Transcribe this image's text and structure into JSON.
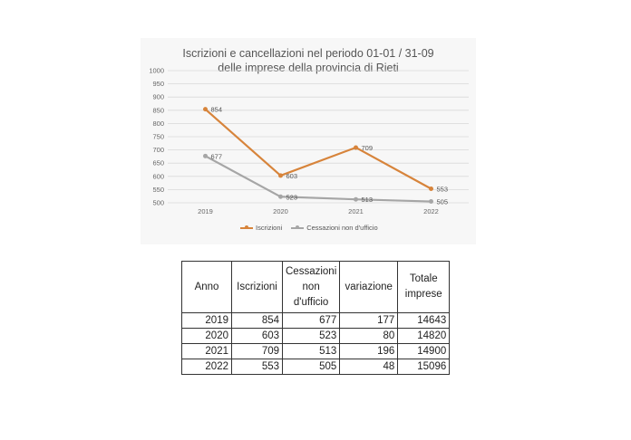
{
  "chart_data": {
    "type": "line",
    "title": "Iscrizioni e cancellazioni nel periodo 01-01 / 31-09",
    "subtitle": "delle imprese della provincia di Rieti",
    "categories": [
      "2019",
      "2020",
      "2021",
      "2022"
    ],
    "series": [
      {
        "name": "Iscrizioni",
        "values": [
          854,
          603,
          709,
          553
        ],
        "color": "#d7843b"
      },
      {
        "name": "Cessazioni non d'ufficio",
        "values": [
          677,
          523,
          513,
          505
        ],
        "color": "#a6a6a6"
      }
    ],
    "ylim": [
      500,
      1000
    ],
    "yticks": [
      "1000",
      "950",
      "900",
      "850",
      "800",
      "750",
      "700",
      "650",
      "600",
      "550",
      "500"
    ],
    "grid": true,
    "legend": "bottom"
  },
  "table": {
    "headers": [
      "Anno",
      "Iscrizioni",
      "Cessazioni non d'ufficio",
      "variazione",
      "Totale imprese"
    ],
    "rows": [
      [
        "2019",
        "854",
        "677",
        "177",
        "14643"
      ],
      [
        "2020",
        "603",
        "523",
        "80",
        "14820"
      ],
      [
        "2021",
        "709",
        "513",
        "196",
        "14900"
      ],
      [
        "2022",
        "553",
        "505",
        "48",
        "15096"
      ]
    ]
  }
}
